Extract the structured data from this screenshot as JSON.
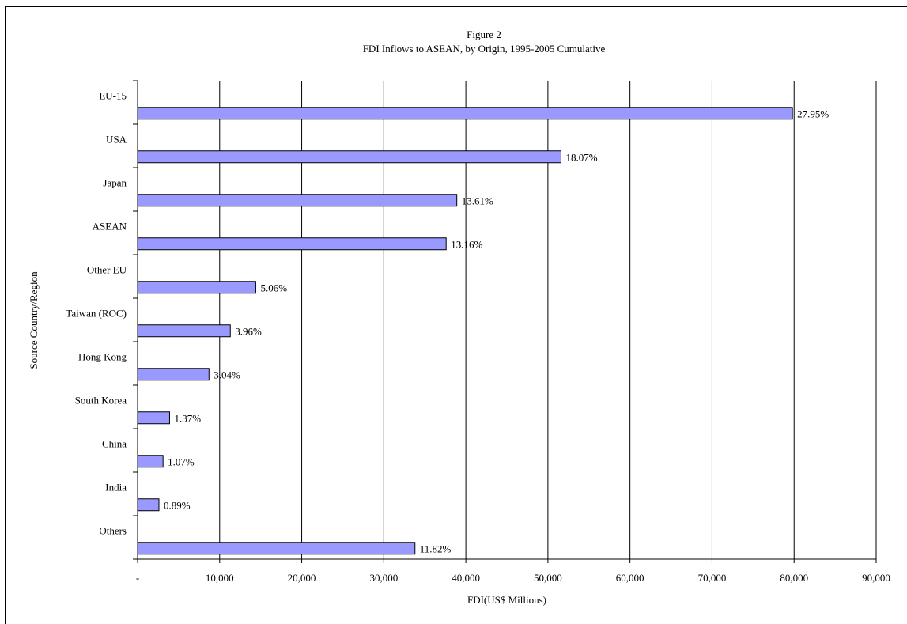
{
  "chart_data": {
    "type": "bar",
    "orientation": "horizontal",
    "title_line1": "Figure 2",
    "title_line2": "FDI Inflows to ASEAN, by Origin, 1995-2005 Cumulative",
    "xlabel": "FDI(US$ Millions)",
    "ylabel": "Source Country/Region",
    "xlim": [
      0,
      90000
    ],
    "x_ticks": [
      0,
      10000,
      20000,
      30000,
      40000,
      50000,
      60000,
      70000,
      80000,
      90000
    ],
    "x_tick_labels": [
      "-",
      "10,000",
      "20,000",
      "30,000",
      "40,000",
      "50,000",
      "60,000",
      "70,000",
      "80,000",
      "90,000"
    ],
    "grid": "vertical",
    "bar_color": "#9999ff",
    "categories": [
      "EU-15",
      "USA",
      "Japan",
      "ASEAN",
      "Other EU",
      "Taiwan (ROC)",
      "Hong Kong",
      "South Korea",
      "China",
      "India",
      "Others"
    ],
    "values": [
      79800,
      51600,
      38900,
      37600,
      14400,
      11300,
      8700,
      3900,
      3100,
      2600,
      33800
    ],
    "data_labels": [
      "27.95%",
      "18.07%",
      "13.61%",
      "13.16%",
      "5.06%",
      "3.96%",
      "3.04%",
      "1.37%",
      "1.07%",
      "0.89%",
      "11.82%"
    ]
  }
}
